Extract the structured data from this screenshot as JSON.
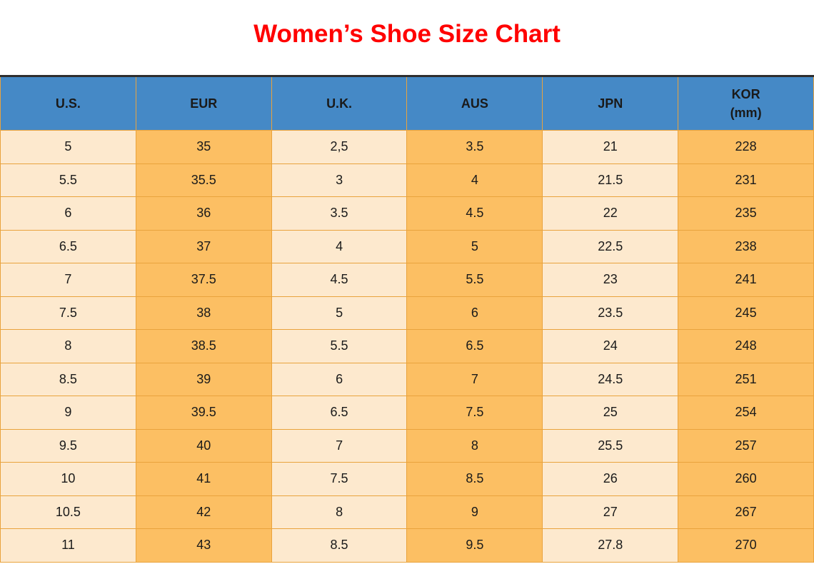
{
  "page": {
    "title": "Women’s Shoe Size Chart"
  },
  "colors": {
    "title_red": "#ff0000",
    "header_blue": "#4589c6",
    "cell_cream": "#fde9ce",
    "cell_orange": "#fcbf63",
    "grid_border_orange": "#e9a33d",
    "table_top_border_dark": "#2e2e2e",
    "text_black": "#1a1a1a"
  },
  "table": {
    "headers": [
      {
        "label": "U.S."
      },
      {
        "label": "EUR"
      },
      {
        "label": "U.K."
      },
      {
        "label": "AUS"
      },
      {
        "label": "JPN"
      },
      {
        "label": "KOR",
        "sub": "(mm)"
      }
    ]
  },
  "chart_data": {
    "type": "table",
    "title": "Women’s Shoe Size Chart",
    "columns": [
      "U.S.",
      "EUR",
      "U.K.",
      "AUS",
      "JPN",
      "KOR (mm)"
    ],
    "rows": [
      [
        "5",
        "35",
        "2,5",
        "3.5",
        "21",
        "228"
      ],
      [
        "5.5",
        "35.5",
        "3",
        "4",
        "21.5",
        "231"
      ],
      [
        "6",
        "36",
        "3.5",
        "4.5",
        "22",
        "235"
      ],
      [
        "6.5",
        "37",
        "4",
        "5",
        "22.5",
        "238"
      ],
      [
        "7",
        "37.5",
        "4.5",
        "5.5",
        "23",
        "241"
      ],
      [
        "7.5",
        "38",
        "5",
        "6",
        "23.5",
        "245"
      ],
      [
        "8",
        "38.5",
        "5.5",
        "6.5",
        "24",
        "248"
      ],
      [
        "8.5",
        "39",
        "6",
        "7",
        "24.5",
        "251"
      ],
      [
        "9",
        "39.5",
        "6.5",
        "7.5",
        "25",
        "254"
      ],
      [
        "9.5",
        "40",
        "7",
        "8",
        "25.5",
        "257"
      ],
      [
        "10",
        "41",
        "7.5",
        "8.5",
        "26",
        "260"
      ],
      [
        "10.5",
        "42",
        "8",
        "9",
        "27",
        "267"
      ],
      [
        "11",
        "43",
        "8.5",
        "9.5",
        "27.8",
        "270"
      ]
    ]
  }
}
